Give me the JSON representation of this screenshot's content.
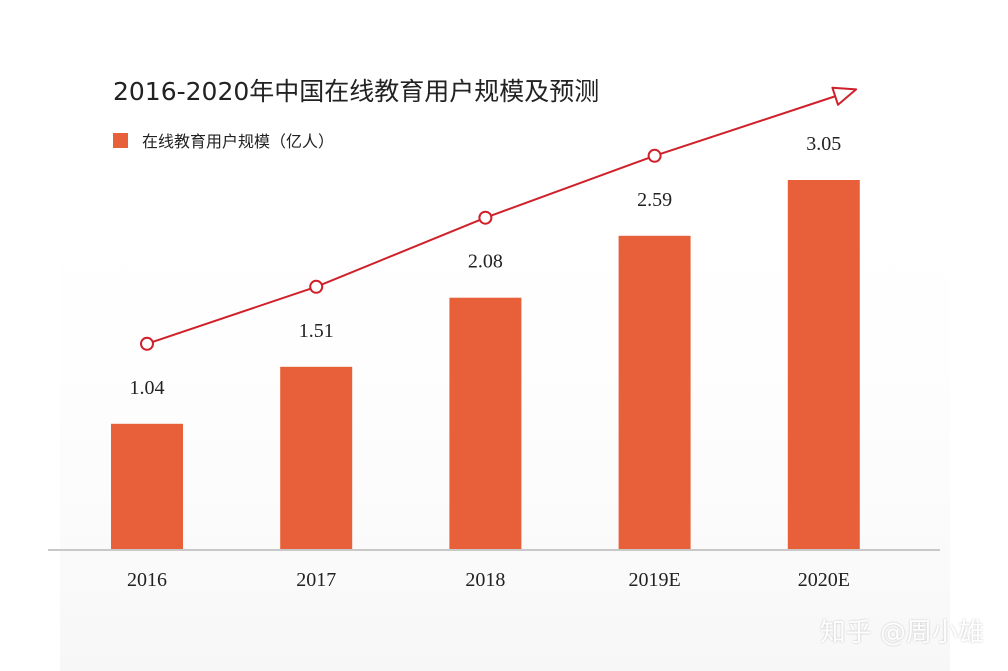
{
  "chart_data": {
    "type": "bar",
    "title": "2016-2020年中国在线教育用户规模及预测",
    "categories": [
      "2016",
      "2017",
      "2018",
      "2019E",
      "2020E"
    ],
    "series": [
      {
        "name": "在线教育用户规模（亿人）",
        "values": [
          1.04,
          1.51,
          2.08,
          2.59,
          3.05
        ],
        "data_labels": [
          "1.04",
          "1.51",
          "2.08",
          "2.59",
          "3.05"
        ]
      }
    ],
    "ylim": [
      0,
      3.5
    ],
    "grid": false,
    "legend_placement": "top-left",
    "trend_line": true,
    "colors": {
      "bar": "#E8603A",
      "trend": "#D0202A",
      "axis": "#C8C8C8",
      "text": "#222222"
    }
  },
  "watermark": "知乎 @周小雄"
}
